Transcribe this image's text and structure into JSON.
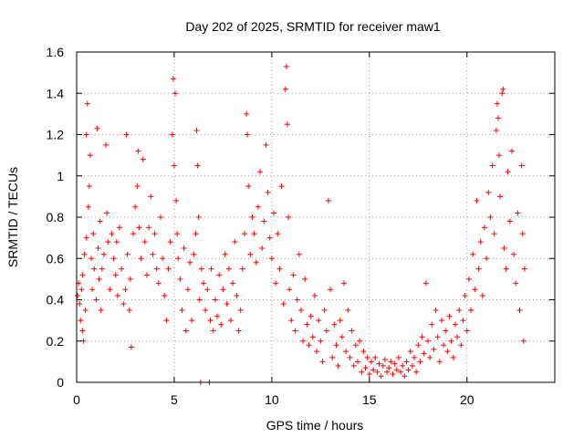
{
  "chart_data": {
    "type": "scatter",
    "title": "Day 202 of 2025, SRMTID for receiver maw1",
    "xlabel": "GPS time / hours",
    "ylabel": "SRMTID / TECUs",
    "xlim": [
      0,
      24.5
    ],
    "ylim": [
      0,
      1.6
    ],
    "xticks": [
      0,
      5,
      10,
      15,
      20
    ],
    "xtick_labels": [
      "0",
      "5",
      "10",
      "15",
      "20"
    ],
    "yticks": [
      0,
      0.2,
      0.4,
      0.6,
      0.8,
      1.0,
      1.2,
      1.4,
      1.6
    ],
    "ytick_labels": [
      "0",
      "0.2",
      "0.4",
      "0.6",
      "0.8",
      "1",
      "1.2",
      "1.4",
      "1.6"
    ],
    "grid": true,
    "marker": "+",
    "color": "#ff0000",
    "series": [
      {
        "name": "maw1",
        "points": [
          [
            0.05,
            0.42
          ],
          [
            0.1,
            0.48
          ],
          [
            0.15,
            0.38
          ],
          [
            0.2,
            0.3
          ],
          [
            0.25,
            0.45
          ],
          [
            0.3,
            0.25
          ],
          [
            0.3,
            0.52
          ],
          [
            0.35,
            0.2
          ],
          [
            0.4,
            0.62
          ],
          [
            0.45,
            0.35
          ],
          [
            0.5,
            1.2
          ],
          [
            0.5,
            0.7
          ],
          [
            0.55,
            1.35
          ],
          [
            0.6,
            0.85
          ],
          [
            0.65,
            0.95
          ],
          [
            0.7,
            1.1
          ],
          [
            0.75,
            0.6
          ],
          [
            0.8,
            0.45
          ],
          [
            0.85,
            0.72
          ],
          [
            0.9,
            0.55
          ],
          [
            1.0,
            0.4
          ],
          [
            1.05,
            1.23
          ],
          [
            1.1,
            0.65
          ],
          [
            1.15,
            0.5
          ],
          [
            1.2,
            0.78
          ],
          [
            1.25,
            0.35
          ],
          [
            1.3,
            0.55
          ],
          [
            1.4,
            0.62
          ],
          [
            1.5,
            1.15
          ],
          [
            1.55,
            0.82
          ],
          [
            1.6,
            0.68
          ],
          [
            1.7,
            0.45
          ],
          [
            1.8,
            0.72
          ],
          [
            1.9,
            0.6
          ],
          [
            2.0,
            0.52
          ],
          [
            2.05,
            0.68
          ],
          [
            2.1,
            0.42
          ],
          [
            2.2,
            0.75
          ],
          [
            2.3,
            0.55
          ],
          [
            2.4,
            0.38
          ],
          [
            2.5,
            0.45
          ],
          [
            2.55,
            1.2
          ],
          [
            2.6,
            0.62
          ],
          [
            2.7,
            0.35
          ],
          [
            2.75,
            0.5
          ],
          [
            2.8,
            0.17
          ],
          [
            2.9,
            0.72
          ],
          [
            3.0,
            0.85
          ],
          [
            3.1,
            0.95
          ],
          [
            3.15,
            1.12
          ],
          [
            3.2,
            0.75
          ],
          [
            3.3,
            0.6
          ],
          [
            3.4,
            1.08
          ],
          [
            3.5,
            0.68
          ],
          [
            3.6,
            0.52
          ],
          [
            3.7,
            0.75
          ],
          [
            3.8,
            0.9
          ],
          [
            3.9,
            0.62
          ],
          [
            4.0,
            0.72
          ],
          [
            4.1,
            0.55
          ],
          [
            4.2,
            0.48
          ],
          [
            4.3,
            0.8
          ],
          [
            4.4,
            0.6
          ],
          [
            4.5,
            0.42
          ],
          [
            4.6,
            0.3
          ],
          [
            4.7,
            0.55
          ],
          [
            4.8,
            0.68
          ],
          [
            4.9,
            1.2
          ],
          [
            4.95,
            1.47
          ],
          [
            5.0,
            1.05
          ],
          [
            5.05,
            1.4
          ],
          [
            5.1,
            0.88
          ],
          [
            5.15,
            0.72
          ],
          [
            5.2,
            0.6
          ],
          [
            5.3,
            0.5
          ],
          [
            5.4,
            0.35
          ],
          [
            5.5,
            0.65
          ],
          [
            5.6,
            0.25
          ],
          [
            5.7,
            0.45
          ],
          [
            5.8,
            0.58
          ],
          [
            5.9,
            0.3
          ],
          [
            6.0,
            0.62
          ],
          [
            6.1,
            0.72
          ],
          [
            6.15,
            1.22
          ],
          [
            6.2,
            1.05
          ],
          [
            6.25,
            0.8
          ],
          [
            6.3,
            0.4
          ],
          [
            6.35,
            0.0
          ],
          [
            6.4,
            0.55
          ],
          [
            6.5,
            0.48
          ],
          [
            6.6,
            0.35
          ],
          [
            6.7,
            0.45
          ],
          [
            6.8,
            0.0
          ],
          [
            6.85,
            0.3
          ],
          [
            6.9,
            0.55
          ],
          [
            7.0,
            0.25
          ],
          [
            7.1,
            0.4
          ],
          [
            7.2,
            0.32
          ],
          [
            7.3,
            0.52
          ],
          [
            7.4,
            0.28
          ],
          [
            7.5,
            0.45
          ],
          [
            7.6,
            0.62
          ],
          [
            7.7,
            0.38
          ],
          [
            7.8,
            0.55
          ],
          [
            7.9,
            0.3
          ],
          [
            8.0,
            0.48
          ],
          [
            8.1,
            0.68
          ],
          [
            8.2,
            0.42
          ],
          [
            8.3,
            0.25
          ],
          [
            8.4,
            0.35
          ],
          [
            8.5,
            0.55
          ],
          [
            8.6,
            0.72
          ],
          [
            8.7,
            1.3
          ],
          [
            8.75,
            1.2
          ],
          [
            8.8,
            0.95
          ],
          [
            8.9,
            0.62
          ],
          [
            9.0,
            0.8
          ],
          [
            9.1,
            0.72
          ],
          [
            9.2,
            0.58
          ],
          [
            9.3,
            0.85
          ],
          [
            9.4,
            1.02
          ],
          [
            9.5,
            0.65
          ],
          [
            9.6,
            0.78
          ],
          [
            9.7,
            1.15
          ],
          [
            9.8,
            0.92
          ],
          [
            9.9,
            0.7
          ],
          [
            10.0,
            0.6
          ],
          [
            10.1,
            0.82
          ],
          [
            10.2,
            0.48
          ],
          [
            10.3,
            0.72
          ],
          [
            10.4,
            0.55
          ],
          [
            10.5,
            0.95
          ],
          [
            10.6,
            0.38
          ],
          [
            10.7,
            1.42
          ],
          [
            10.75,
            1.53
          ],
          [
            10.8,
            1.25
          ],
          [
            10.85,
            0.8
          ],
          [
            10.9,
            0.45
          ],
          [
            11.0,
            0.3
          ],
          [
            11.1,
            0.52
          ],
          [
            11.2,
            0.25
          ],
          [
            11.3,
            0.4
          ],
          [
            11.4,
            0.62
          ],
          [
            11.5,
            0.35
          ],
          [
            11.6,
            0.2
          ],
          [
            11.7,
            0.5
          ],
          [
            11.8,
            0.28
          ],
          [
            11.9,
            0.18
          ],
          [
            12.0,
            0.32
          ],
          [
            12.1,
            0.22
          ],
          [
            12.2,
            0.42
          ],
          [
            12.3,
            0.15
          ],
          [
            12.4,
            0.3
          ],
          [
            12.5,
            0.2
          ],
          [
            12.6,
            0.1
          ],
          [
            12.7,
            0.35
          ],
          [
            12.8,
            0.25
          ],
          [
            12.9,
            0.88
          ],
          [
            13.0,
            0.45
          ],
          [
            13.1,
            0.12
          ],
          [
            13.2,
            0.28
          ],
          [
            13.3,
            0.18
          ],
          [
            13.4,
            0.08
          ],
          [
            13.5,
            0.3
          ],
          [
            13.6,
            0.22
          ],
          [
            13.7,
            0.48
          ],
          [
            13.8,
            0.15
          ],
          [
            13.9,
            0.35
          ],
          [
            14.0,
            0.12
          ],
          [
            14.1,
            0.25
          ],
          [
            14.2,
            0.08
          ],
          [
            14.3,
            0.18
          ],
          [
            14.4,
            0.1
          ],
          [
            14.5,
            0.2
          ],
          [
            14.6,
            0.05
          ],
          [
            14.7,
            0.15
          ],
          [
            14.8,
            0.07
          ],
          [
            14.9,
            0.12
          ],
          [
            15.0,
            0.04
          ],
          [
            15.1,
            0.1
          ],
          [
            15.2,
            0.06
          ],
          [
            15.3,
            0.12
          ],
          [
            15.4,
            0.05
          ],
          [
            15.5,
            0.09
          ],
          [
            15.6,
            0.03
          ],
          [
            15.7,
            0.08
          ],
          [
            15.8,
            0.11
          ],
          [
            15.9,
            0.05
          ],
          [
            16.0,
            0.07
          ],
          [
            16.1,
            0.1
          ],
          [
            16.2,
            0.04
          ],
          [
            16.3,
            0.09
          ],
          [
            16.4,
            0.06
          ],
          [
            16.5,
            0.12
          ],
          [
            16.6,
            0.05
          ],
          [
            16.7,
            0.08
          ],
          [
            16.8,
            0.03
          ],
          [
            16.9,
            0.1
          ],
          [
            17.0,
            0.06
          ],
          [
            17.1,
            0.15
          ],
          [
            17.2,
            0.08
          ],
          [
            17.3,
            0.12
          ],
          [
            17.4,
            0.05
          ],
          [
            17.5,
            0.18
          ],
          [
            17.6,
            0.1
          ],
          [
            17.7,
            0.22
          ],
          [
            17.8,
            0.14
          ],
          [
            17.9,
            0.48
          ],
          [
            18.0,
            0.2
          ],
          [
            18.1,
            0.12
          ],
          [
            18.2,
            0.28
          ],
          [
            18.3,
            0.16
          ],
          [
            18.4,
            0.35
          ],
          [
            18.5,
            0.22
          ],
          [
            18.6,
            0.1
          ],
          [
            18.7,
            0.3
          ],
          [
            18.8,
            0.18
          ],
          [
            18.9,
            0.25
          ],
          [
            19.0,
            0.15
          ],
          [
            19.1,
            0.32
          ],
          [
            19.2,
            0.2
          ],
          [
            19.3,
            0.12
          ],
          [
            19.4,
            0.28
          ],
          [
            19.5,
            0.22
          ],
          [
            19.6,
            0.35
          ],
          [
            19.7,
            0.18
          ],
          [
            19.8,
            0.3
          ],
          [
            19.9,
            0.42
          ],
          [
            20.0,
            0.25
          ],
          [
            20.1,
            0.5
          ],
          [
            20.2,
            0.35
          ],
          [
            20.3,
            0.62
          ],
          [
            20.4,
            0.45
          ],
          [
            20.5,
            0.88
          ],
          [
            20.6,
            0.55
          ],
          [
            20.7,
            0.68
          ],
          [
            20.8,
            0.42
          ],
          [
            20.9,
            0.75
          ],
          [
            21.0,
            0.6
          ],
          [
            21.1,
            0.92
          ],
          [
            21.2,
            0.8
          ],
          [
            21.3,
            1.05
          ],
          [
            21.4,
            0.72
          ],
          [
            21.5,
            1.22
          ],
          [
            21.55,
            1.35
          ],
          [
            21.6,
            1.28
          ],
          [
            21.65,
            1.1
          ],
          [
            21.7,
            0.9
          ],
          [
            21.8,
            1.4
          ],
          [
            21.85,
            1.42
          ],
          [
            21.9,
            0.65
          ],
          [
            22.0,
            0.55
          ],
          [
            22.1,
            1.02
          ],
          [
            22.2,
            0.78
          ],
          [
            22.3,
            1.12
          ],
          [
            22.4,
            0.62
          ],
          [
            22.5,
            0.48
          ],
          [
            22.6,
            0.82
          ],
          [
            22.7,
            0.35
          ],
          [
            22.8,
            1.05
          ],
          [
            22.85,
            0.72
          ],
          [
            22.9,
            0.2
          ],
          [
            22.95,
            0.55
          ]
        ]
      }
    ]
  }
}
